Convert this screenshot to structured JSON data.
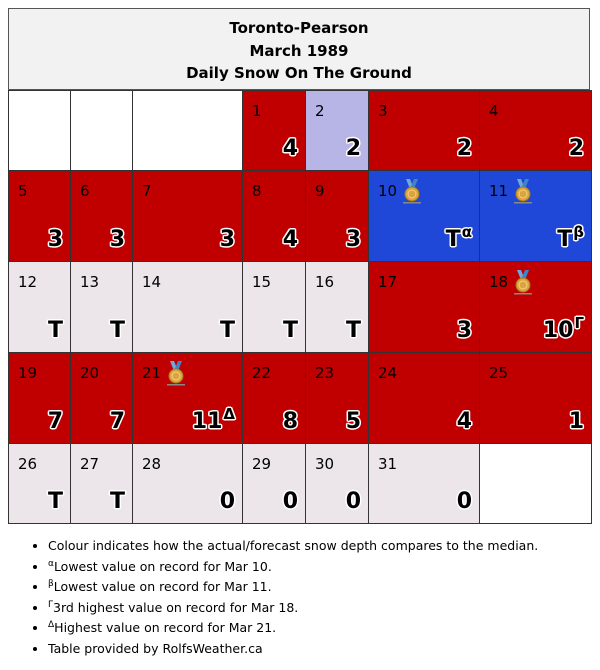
{
  "header": {
    "station": "Toronto-Pearson",
    "period": "March 1989",
    "subject": "Daily Snow On The Ground"
  },
  "colors": {
    "above_median": "#c00000",
    "median": "#b7b4e6",
    "record_low": "#2048d8",
    "trace_or_none": "#ece6ea",
    "empty": "#ffffff",
    "medal": "#d9a441"
  },
  "days": [
    {
      "day": "1",
      "value": "4",
      "sup": "",
      "color": "above_median",
      "medal": false
    },
    {
      "day": "2",
      "value": "2",
      "sup": "",
      "color": "median",
      "medal": false
    },
    {
      "day": "3",
      "value": "2",
      "sup": "",
      "color": "above_median",
      "medal": false
    },
    {
      "day": "4",
      "value": "2",
      "sup": "",
      "color": "above_median",
      "medal": false
    },
    {
      "day": "5",
      "value": "3",
      "sup": "",
      "color": "above_median",
      "medal": false
    },
    {
      "day": "6",
      "value": "3",
      "sup": "",
      "color": "above_median",
      "medal": false
    },
    {
      "day": "7",
      "value": "3",
      "sup": "",
      "color": "above_median",
      "medal": false
    },
    {
      "day": "8",
      "value": "4",
      "sup": "",
      "color": "above_median",
      "medal": false
    },
    {
      "day": "9",
      "value": "3",
      "sup": "",
      "color": "above_median",
      "medal": false
    },
    {
      "day": "10",
      "value": "T",
      "sup": "α",
      "color": "record_low",
      "medal": true
    },
    {
      "day": "11",
      "value": "T",
      "sup": "β",
      "color": "record_low",
      "medal": true
    },
    {
      "day": "12",
      "value": "T",
      "sup": "",
      "color": "trace_or_none",
      "medal": false
    },
    {
      "day": "13",
      "value": "T",
      "sup": "",
      "color": "trace_or_none",
      "medal": false
    },
    {
      "day": "14",
      "value": "T",
      "sup": "",
      "color": "trace_or_none",
      "medal": false
    },
    {
      "day": "15",
      "value": "T",
      "sup": "",
      "color": "trace_or_none",
      "medal": false
    },
    {
      "day": "16",
      "value": "T",
      "sup": "",
      "color": "trace_or_none",
      "medal": false
    },
    {
      "day": "17",
      "value": "3",
      "sup": "",
      "color": "above_median",
      "medal": false
    },
    {
      "day": "18",
      "value": "10",
      "sup": "Γ",
      "color": "above_median",
      "medal": true
    },
    {
      "day": "19",
      "value": "7",
      "sup": "",
      "color": "above_median",
      "medal": false
    },
    {
      "day": "20",
      "value": "7",
      "sup": "",
      "color": "above_median",
      "medal": false
    },
    {
      "day": "21",
      "value": "11",
      "sup": "Δ",
      "color": "above_median",
      "medal": true
    },
    {
      "day": "22",
      "value": "8",
      "sup": "",
      "color": "above_median",
      "medal": false
    },
    {
      "day": "23",
      "value": "5",
      "sup": "",
      "color": "above_median",
      "medal": false
    },
    {
      "day": "24",
      "value": "4",
      "sup": "",
      "color": "above_median",
      "medal": false
    },
    {
      "day": "25",
      "value": "1",
      "sup": "",
      "color": "above_median",
      "medal": false
    },
    {
      "day": "26",
      "value": "T",
      "sup": "",
      "color": "trace_or_none",
      "medal": false
    },
    {
      "day": "27",
      "value": "T",
      "sup": "",
      "color": "trace_or_none",
      "medal": false
    },
    {
      "day": "28",
      "value": "0",
      "sup": "",
      "color": "trace_or_none",
      "medal": false
    },
    {
      "day": "29",
      "value": "0",
      "sup": "",
      "color": "trace_or_none",
      "medal": false
    },
    {
      "day": "30",
      "value": "0",
      "sup": "",
      "color": "trace_or_none",
      "medal": false
    },
    {
      "day": "31",
      "value": "0",
      "sup": "",
      "color": "trace_or_none",
      "medal": false
    }
  ],
  "notes": [
    {
      "sup": "",
      "text": "Colour indicates how the actual/forecast snow depth compares to the median."
    },
    {
      "sup": "α",
      "text": "Lowest value on record for Mar 10."
    },
    {
      "sup": "β",
      "text": "Lowest value on record for Mar 11."
    },
    {
      "sup": "Γ",
      "text": "3rd highest value on record for Mar 18."
    },
    {
      "sup": "Δ",
      "text": "Highest value on record for Mar 21."
    },
    {
      "sup": "",
      "text": "Table provided by RolfsWeather.ca"
    }
  ]
}
